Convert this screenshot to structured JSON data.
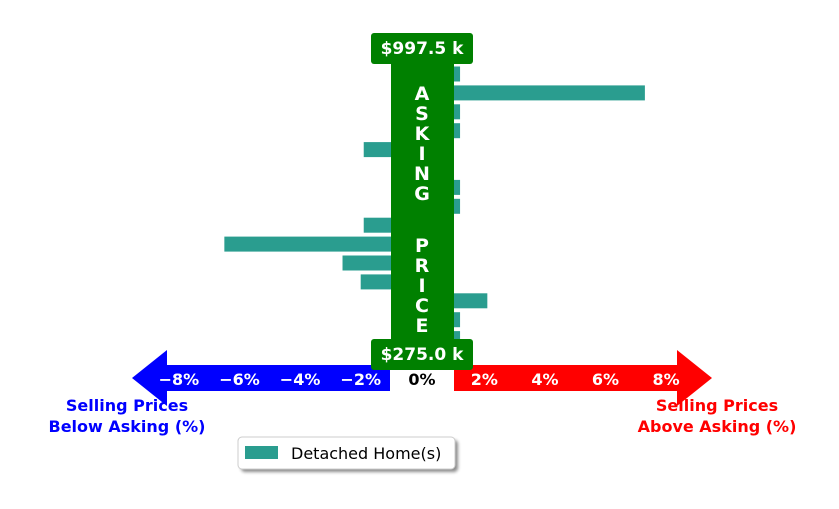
{
  "chart_data": {
    "type": "bar",
    "orientation": "horizontal",
    "series": [
      {
        "name": "Detached Home(s)",
        "color": "#2a9d8f",
        "values": [
          1.2,
          7.3,
          1.2,
          1.2,
          -1.9,
          -1.0,
          1.2,
          1.2,
          -1.9,
          -6.5,
          -2.6,
          -2.0,
          2.1,
          1.2,
          1.2
        ]
      }
    ],
    "xlim": [
      -9,
      9
    ],
    "x_ticks": [
      {
        "value": -8,
        "label": "−8%"
      },
      {
        "value": -6,
        "label": "−6%"
      },
      {
        "value": -4,
        "label": "−4%"
      },
      {
        "value": -2,
        "label": "−2%"
      },
      {
        "value": 0,
        "label": "0%"
      },
      {
        "value": 2,
        "label": "2%"
      },
      {
        "value": 4,
        "label": "4%"
      },
      {
        "value": 6,
        "label": "6%"
      },
      {
        "value": 8,
        "label": "8%"
      }
    ],
    "top_price_label": "$997.5 k",
    "bottom_price_label": "$275.0 k",
    "center_column_text": "ASKING PRICE",
    "center_column_color": "#008000",
    "left_arrow_color": "#0000ff",
    "right_arrow_color": "#ff0000",
    "left_label": [
      "Selling Prices",
      "Below Asking (%)"
    ],
    "right_label": [
      "Selling Prices",
      "Above Asking (%)"
    ],
    "legend_position": "bottom-center"
  }
}
